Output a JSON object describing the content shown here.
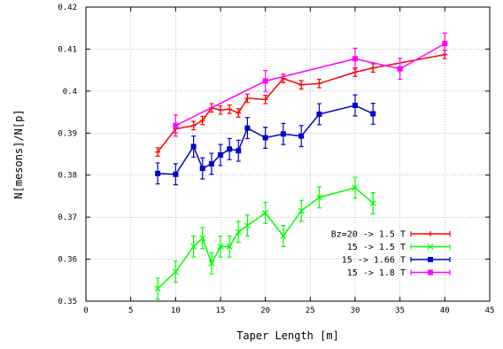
{
  "chart_data": {
    "type": "line",
    "xlabel": "Taper Length [m]",
    "ylabel": "N[mesons]/N[p]",
    "xlim": [
      0,
      45
    ],
    "ylim": [
      0.35,
      0.42
    ],
    "xticks": [
      0,
      5,
      10,
      15,
      20,
      25,
      30,
      35,
      40,
      45
    ],
    "yticks": [
      0.35,
      0.36,
      0.37,
      0.38,
      0.39,
      0.4,
      0.41,
      0.42
    ],
    "grid": true,
    "legend_position": "bottom-right",
    "series": [
      {
        "name": "Bz=20 -> 1.5 T",
        "color": "#ff0000",
        "marker": "plus",
        "x": [
          8,
          10,
          12,
          13,
          14,
          15,
          16,
          17,
          18,
          20,
          22,
          24,
          26,
          30,
          32,
          40
        ],
        "y": [
          0.3855,
          0.391,
          0.3918,
          0.393,
          0.396,
          0.3955,
          0.3957,
          0.3948,
          0.3983,
          0.398,
          0.403,
          0.4015,
          0.4018,
          0.4045,
          0.4055,
          0.4087
        ],
        "err": [
          0.001,
          0.001,
          0.001,
          0.001,
          0.001,
          0.001,
          0.001,
          0.001,
          0.001,
          0.001,
          0.001,
          0.001,
          0.001,
          0.001,
          0.001,
          0.001
        ]
      },
      {
        "name": "15 -> 1.5 T",
        "color": "#00ff00",
        "marker": "cross",
        "x": [
          8,
          10,
          12,
          13,
          14,
          15,
          16,
          17,
          18,
          20,
          22,
          24,
          26,
          30,
          32
        ],
        "y": [
          0.353,
          0.357,
          0.363,
          0.365,
          0.359,
          0.363,
          0.363,
          0.3665,
          0.368,
          0.371,
          0.3655,
          0.3715,
          0.3747,
          0.377,
          0.3733
        ],
        "err": [
          0.0025,
          0.0025,
          0.0025,
          0.0025,
          0.0025,
          0.0025,
          0.0025,
          0.0025,
          0.0025,
          0.0025,
          0.0025,
          0.0025,
          0.0025,
          0.0025,
          0.0025
        ]
      },
      {
        "name": "15 -> 1.66 T",
        "color": "#0000cc",
        "marker": "square",
        "x": [
          8,
          10,
          12,
          13,
          14,
          15,
          16,
          17,
          18,
          20,
          22,
          24,
          26,
          30,
          32
        ],
        "y": [
          0.3804,
          0.3802,
          0.3868,
          0.3816,
          0.3827,
          0.3848,
          0.3862,
          0.3858,
          0.3912,
          0.3889,
          0.3898,
          0.3893,
          0.3945,
          0.3966,
          0.3946
        ],
        "err": [
          0.0025,
          0.0025,
          0.0025,
          0.0025,
          0.0025,
          0.0025,
          0.0025,
          0.0025,
          0.0025,
          0.0025,
          0.0025,
          0.0025,
          0.0025,
          0.0025,
          0.0025
        ]
      },
      {
        "name": "15 -> 1.8 T",
        "color": "#ff00ff",
        "marker": "square",
        "x": [
          10,
          20,
          30,
          35,
          40
        ],
        "y": [
          0.3918,
          0.4024,
          0.4077,
          0.4053,
          0.4113
        ],
        "err": [
          0.0025,
          0.0025,
          0.0025,
          0.0025,
          0.0025
        ]
      }
    ]
  }
}
